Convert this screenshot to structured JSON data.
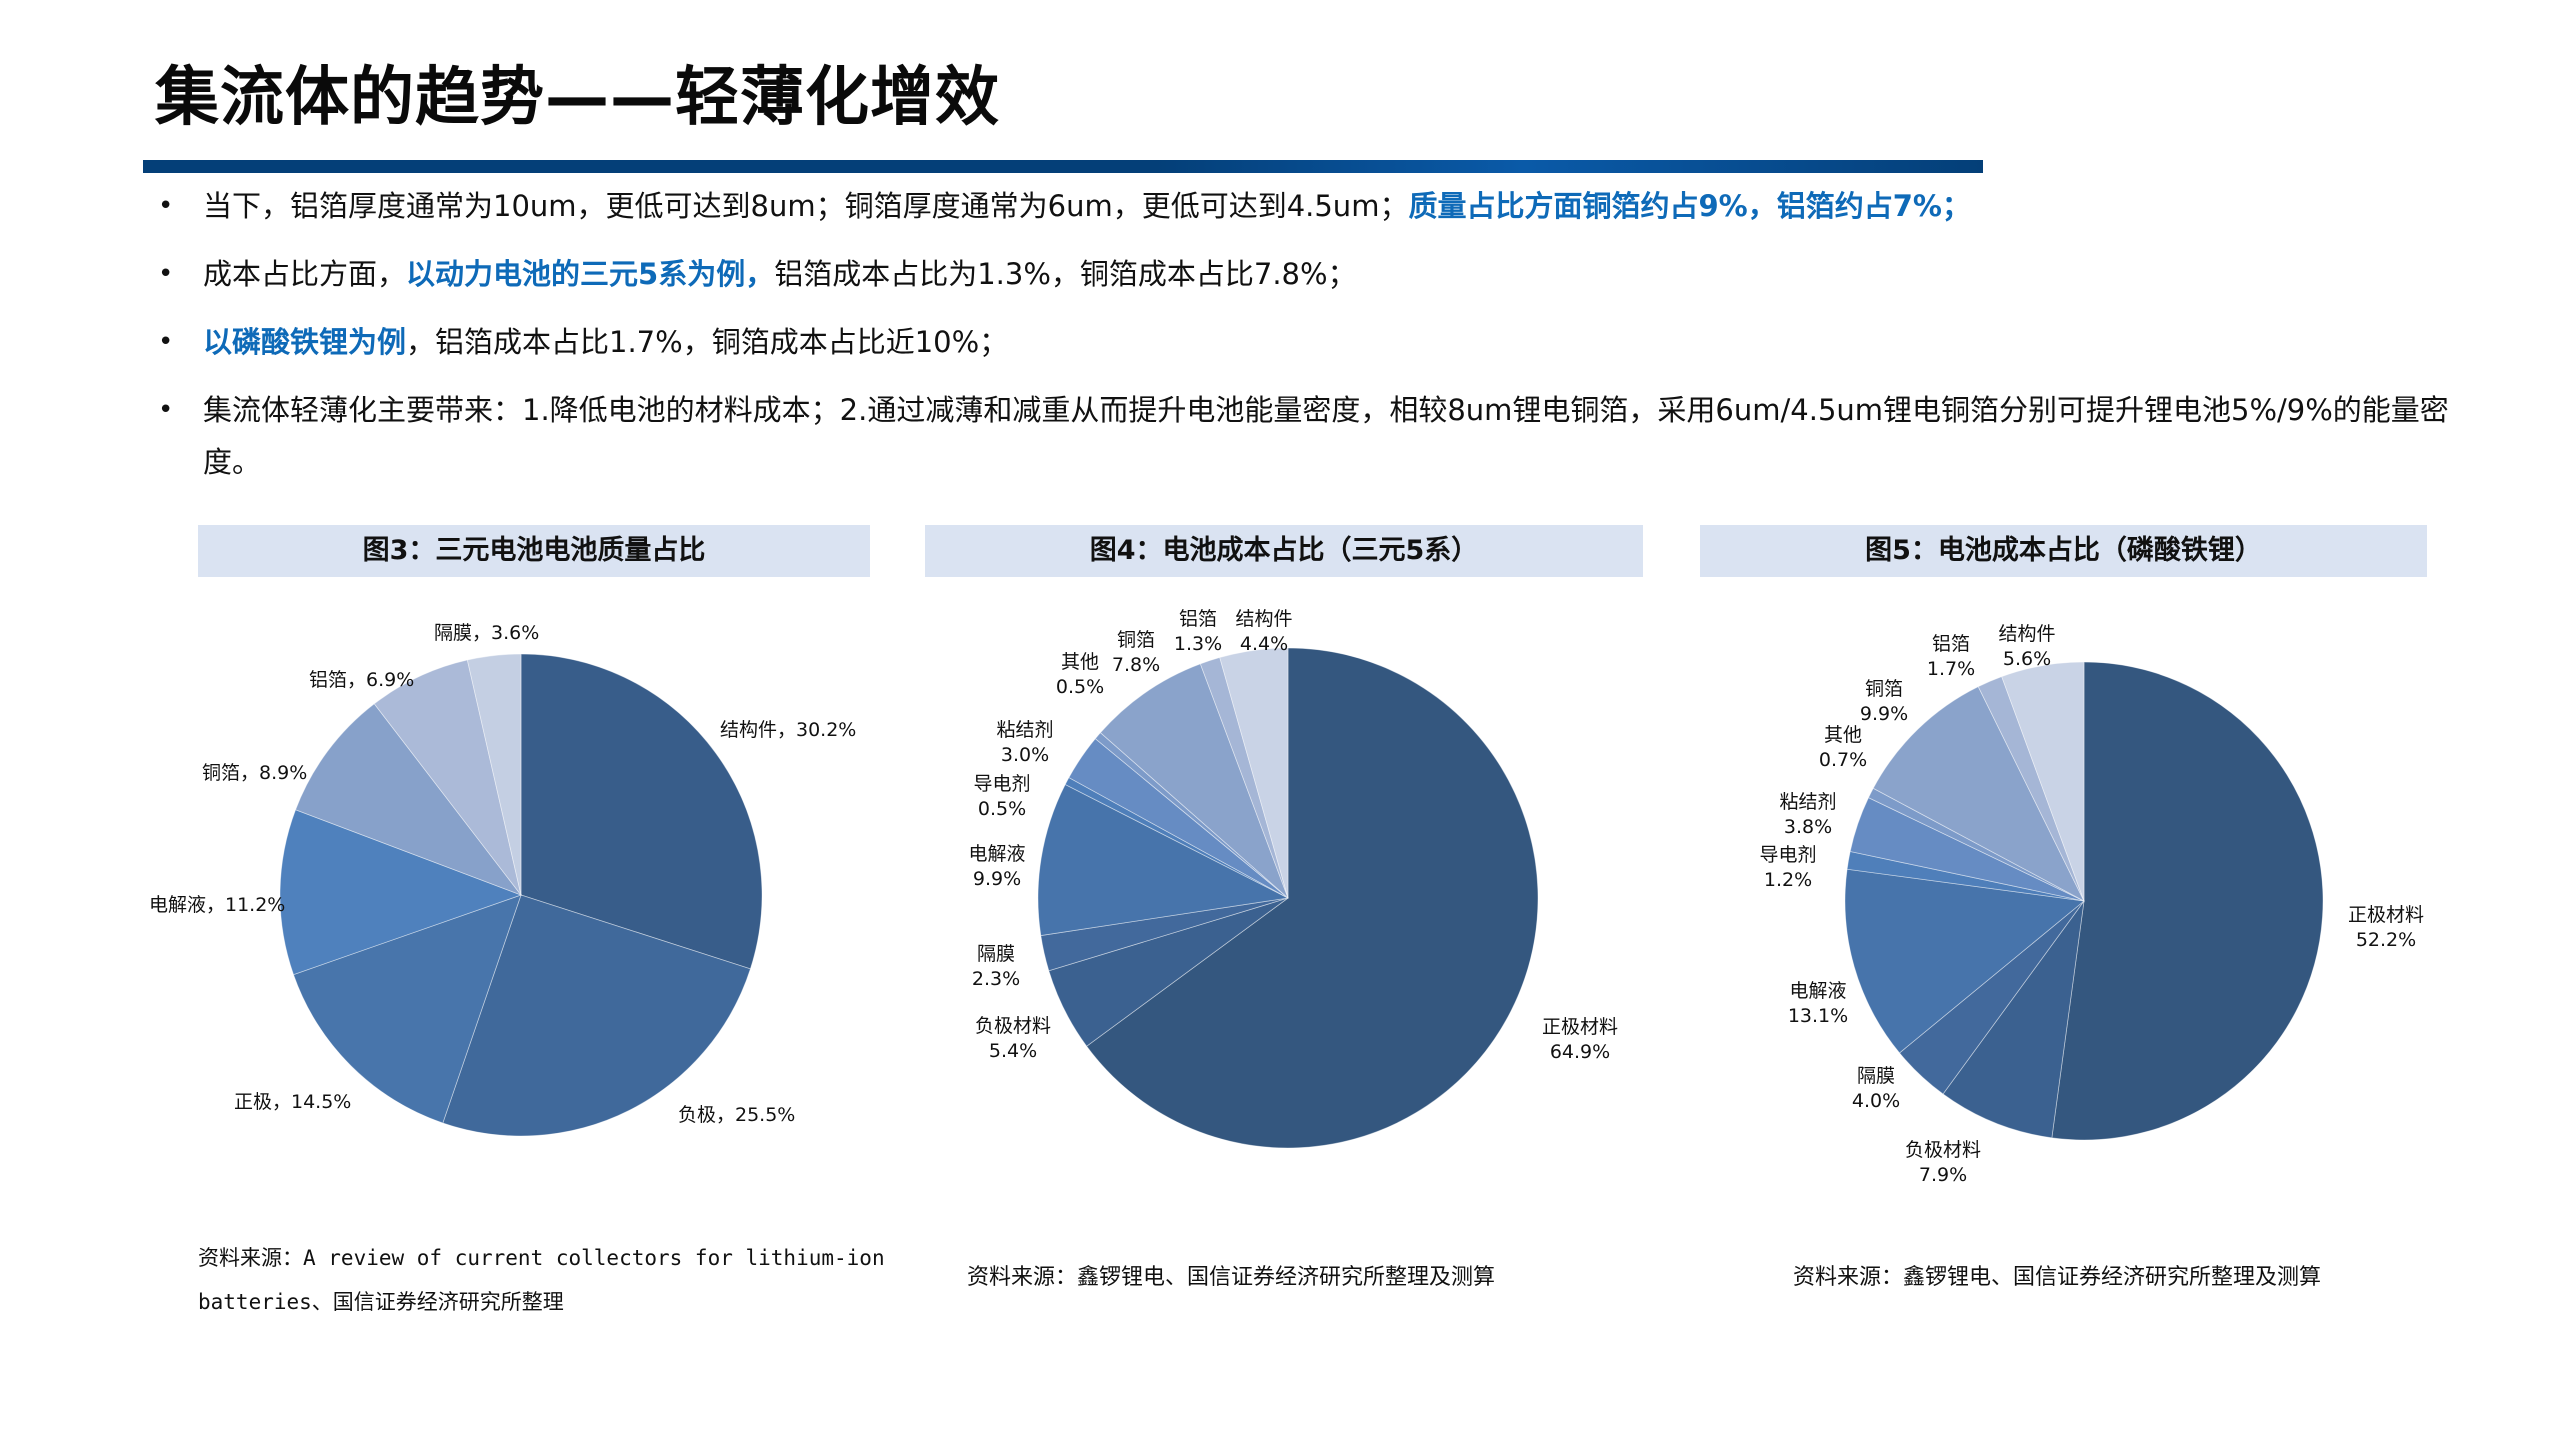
{
  "page": {
    "title": "集流体的趋势——轻薄化增效",
    "bullets": [
      {
        "parts": [
          {
            "text": "当下，铝箔厚度通常为10um，更低可达到8um；铜箔厚度通常为6um，更低可达到4.5um；",
            "highlight": false
          },
          {
            "text": "质量占比方面铜箔约占9%，铝箔约占7%；",
            "highlight": true
          }
        ]
      },
      {
        "parts": [
          {
            "text": "成本占比方面，",
            "highlight": false
          },
          {
            "text": "以动力电池的三元5系为例，",
            "highlight": true
          },
          {
            "text": "铝箔成本占比为1.3%，铜箔成本占比7.8%；",
            "highlight": false
          }
        ]
      },
      {
        "parts": [
          {
            "text": "以磷酸铁锂为例",
            "highlight": true
          },
          {
            "text": "，铝箔成本占比1.7%，铜箔成本占比近10%；",
            "highlight": false
          }
        ]
      },
      {
        "parts": [
          {
            "text": "集流体轻薄化主要带来：1.降低电池的材料成本；2.通过减薄和减重从而提升电池能量密度，相较8um锂电铜箔，采用6um/4.5um锂电铜箔分别可提升锂电池5%/9%的能量密度。",
            "highlight": false
          }
        ]
      }
    ],
    "bullet_symbol": "•",
    "colors": {
      "title_bar": "#043f78",
      "highlight": "#0e6ab8",
      "panel_header_bg": "#dae3f2"
    }
  },
  "chart_data": [
    {
      "type": "pie",
      "title": "图3：三元电池电池质量占比",
      "labels": [
        "结构件",
        "负极",
        "正极",
        "电解液",
        "铜箔",
        "铝箔",
        "隔膜"
      ],
      "values": [
        30.2,
        25.5,
        14.5,
        11.2,
        8.9,
        6.9,
        3.6
      ],
      "display": [
        "结构件，30.2%",
        "负极，25.5%",
        "正极，14.5%",
        "电解液，11.2%",
        "铜箔，8.9%",
        "铝箔，6.9%",
        "隔膜，3.6%"
      ],
      "colors": [
        "#385d8a",
        "#40699b",
        "#4875ab",
        "#4f81bd",
        "#87a1ca",
        "#abbad8",
        "#c4cfe3"
      ],
      "start_angle": "12 o'clock, clockwise",
      "source": "资料来源：A review of current collectors for lithium-ion batteries、国信证券经济研究所整理",
      "source_lines": [
        "资料来源：A review of current collectors for lithium-ion",
        "batteries、国信证券经济研究所整理"
      ]
    },
    {
      "type": "pie",
      "title": "图4：电池成本占比（三元5系）",
      "labels": [
        "正极材料",
        "负极材料",
        "隔膜",
        "电解液",
        "导电剂",
        "粘结剂",
        "其他",
        "铜箔",
        "铝箔",
        "结构件"
      ],
      "values": [
        64.9,
        5.4,
        2.3,
        9.9,
        0.5,
        3.0,
        0.5,
        7.8,
        1.3,
        4.4
      ],
      "display_values": [
        "64.9%",
        "5.4%",
        "2.3%",
        "9.9%",
        "0.5%",
        "3.0%",
        "0.5%",
        "7.8%",
        "1.3%",
        "4.4%"
      ],
      "colors": [
        "#34577f",
        "#3b6190",
        "#42699c",
        "#4774ab",
        "#4f7fba",
        "#668cc3",
        "#7d9bc9",
        "#8aa3cb",
        "#a5b6d6",
        "#c9d3e6"
      ],
      "start_angle": "12 o'clock, clockwise",
      "source": "资料来源：鑫锣锂电、国信证券经济研究所整理及测算"
    },
    {
      "type": "pie",
      "title": "图5：电池成本占比（磷酸铁锂）",
      "labels": [
        "正极材料",
        "负极材料",
        "隔膜",
        "电解液",
        "导电剂",
        "粘结剂",
        "其他",
        "铜箔",
        "铝箔",
        "结构件"
      ],
      "values": [
        52.2,
        7.9,
        4.0,
        13.1,
        1.2,
        3.8,
        0.7,
        9.9,
        1.7,
        5.6
      ],
      "display_values": [
        "52.2%",
        "7.9%",
        "4.0%",
        "13.1%",
        "1.2%",
        "3.8%",
        "0.7%",
        "9.9%",
        "1.7%",
        "5.6%"
      ],
      "colors": [
        "#34577f",
        "#3b6190",
        "#42699c",
        "#4774ab",
        "#4f7fba",
        "#668cc3",
        "#7d9bc9",
        "#8aa3cb",
        "#a5b6d6",
        "#c9d3e6"
      ],
      "start_angle": "12 o'clock, clockwise",
      "source": "资料来源：鑫锣锂电、国信证券经济研究所整理及测算"
    }
  ]
}
